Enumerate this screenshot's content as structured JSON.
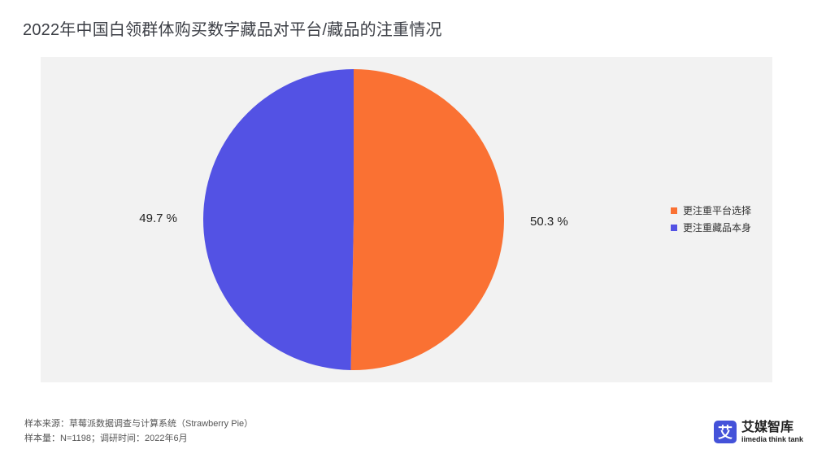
{
  "title": "2022年中国白领群体购买数字藏品对平台/藏品的注重情况",
  "chart_data": {
    "type": "pie",
    "title": "2022年中国白领群体购买数字藏品对平台/藏品的注重情况",
    "slices": [
      {
        "label": "更注重平台选择",
        "value": 50.3,
        "display": "50.3 %",
        "color": "#fa7133"
      },
      {
        "label": "更注重藏品本身",
        "value": 49.7,
        "display": "49.7 %",
        "color": "#5352e4"
      }
    ],
    "legend_position": "right"
  },
  "footer": {
    "source": "样本来源：草莓派数据调查与计算系统（Strawberry Pie）",
    "sample": "样本量：N=1198；调研时间：2022年6月"
  },
  "logo": {
    "icon_name": "ai-media-logo-icon",
    "glyph": "艾",
    "name_cn": "艾媒智库",
    "name_en": "iimedia think tank"
  }
}
